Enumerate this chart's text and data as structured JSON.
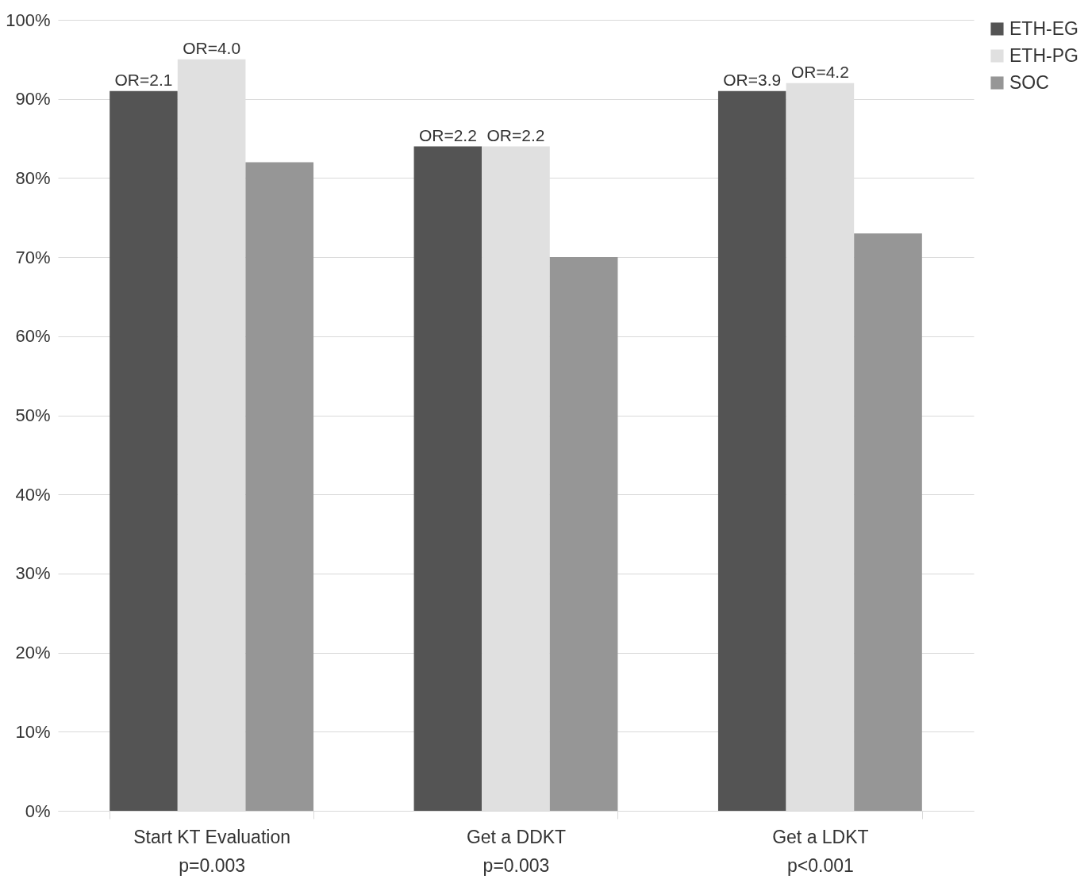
{
  "chart_data": {
    "type": "bar",
    "categories": [
      "Start KT Evaluation\np=0.003",
      "Get a DDKT\np=0.003",
      "Get a LDKT\np<0.001"
    ],
    "series": [
      {
        "name": "ETH-EG",
        "color": "#545454",
        "values": [
          91,
          84,
          91
        ]
      },
      {
        "name": "ETH-PG",
        "color": "#e0e0e0",
        "values": [
          95,
          84,
          92
        ]
      },
      {
        "name": "SOC",
        "color": "#969696",
        "values": [
          82,
          70,
          73
        ]
      }
    ],
    "ylim": [
      0,
      100
    ],
    "yticks": [
      {
        "value": 0,
        "label": "0%"
      },
      {
        "value": 10,
        "label": "10%"
      },
      {
        "value": 20,
        "label": "20%"
      },
      {
        "value": 30,
        "label": "30%"
      },
      {
        "value": 40,
        "label": "40%"
      },
      {
        "value": 50,
        "label": "50%"
      },
      {
        "value": 60,
        "label": "60%"
      },
      {
        "value": 70,
        "label": "70%"
      },
      {
        "value": 80,
        "label": "80%"
      },
      {
        "value": 90,
        "label": "90%"
      },
      {
        "value": 100,
        "label": "100%"
      }
    ],
    "annotations": [
      "OR=2.1",
      {
        "text": "OR=4.0",
        "x": "Start KT Evaluation\np=0.003",
        "y": 95
      },
      {
        "text": "OR=2.2",
        "x": "Get a DDKT\np=0.003",
        "y": 84
      },
      {
        "text": "OR=2.2",
        "x": "Get a DDKT\np=0.003",
        "y": 84
      },
      "OR=3.9",
      {
        "text": "OR=4.2",
        "x": "Get a LDKT\np<0.001",
        "y": 92
      }
    ],
    "grid": "y",
    "legend": "right"
  }
}
